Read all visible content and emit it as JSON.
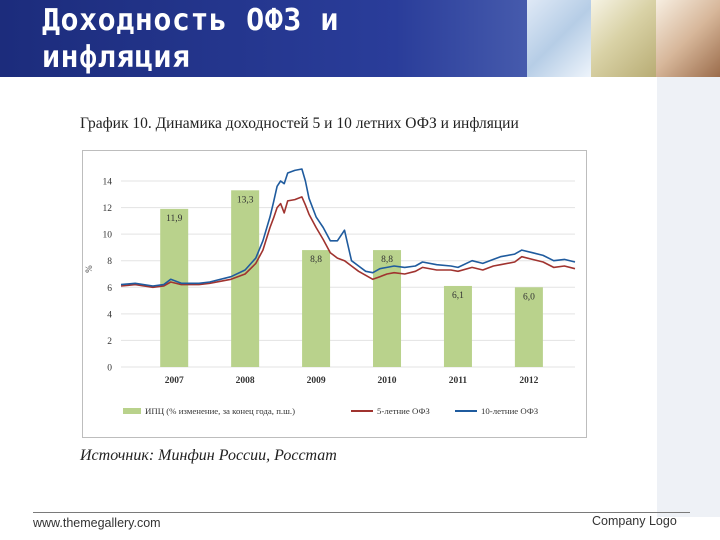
{
  "header": {
    "title": "Доходность ОФЗ и\nинфляция"
  },
  "slide": {
    "chart_title": "График 10. Динамика доходностей 5 и 10 летних ОФЗ и инфляции",
    "source": "Источник: Минфин России, Росстат"
  },
  "footer": {
    "url": "www.themegallery.com",
    "logo": "Company Logo"
  },
  "colors": {
    "header": "#23358a",
    "bars": "#b9d28c",
    "series_5y": "#a0332f",
    "series_10y": "#1f5b9e"
  },
  "chart_data": {
    "type": "bar",
    "title": "",
    "xlabel": "",
    "ylabel": "%",
    "ylim": [
      0,
      14
    ],
    "yticks": [
      0,
      2,
      4,
      6,
      8,
      10,
      12,
      14
    ],
    "categories": [
      "2007",
      "2008",
      "2009",
      "2010",
      "2011",
      "2012"
    ],
    "bars": {
      "name": "ИПЦ (% изменение, за конец года, п.ш.)",
      "values": [
        11.9,
        13.3,
        8.8,
        8.8,
        6.1,
        6.0
      ],
      "labels": [
        "11,9",
        "13,3",
        "8,8",
        "8,8",
        "6,1",
        "6,0"
      ]
    },
    "x_range": [
      2006.75,
      2013.15
    ],
    "series": [
      {
        "name": "5-летние ОФЗ",
        "type": "line",
        "points": [
          [
            2006.75,
            6.1
          ],
          [
            2006.95,
            6.2
          ],
          [
            2007.2,
            6.0
          ],
          [
            2007.35,
            6.1
          ],
          [
            2007.45,
            6.4
          ],
          [
            2007.6,
            6.2
          ],
          [
            2007.85,
            6.2
          ],
          [
            2008.0,
            6.3
          ],
          [
            2008.3,
            6.6
          ],
          [
            2008.5,
            7.0
          ],
          [
            2008.65,
            7.8
          ],
          [
            2008.75,
            8.8
          ],
          [
            2008.85,
            10.5
          ],
          [
            2008.9,
            11.2
          ],
          [
            2008.95,
            12.0
          ],
          [
            2009.0,
            12.3
          ],
          [
            2009.05,
            11.6
          ],
          [
            2009.1,
            12.5
          ],
          [
            2009.2,
            12.6
          ],
          [
            2009.3,
            12.8
          ],
          [
            2009.35,
            12.2
          ],
          [
            2009.4,
            11.5
          ],
          [
            2009.5,
            10.5
          ],
          [
            2009.6,
            9.6
          ],
          [
            2009.7,
            8.6
          ],
          [
            2009.8,
            8.2
          ],
          [
            2009.9,
            8.0
          ],
          [
            2010.0,
            7.6
          ],
          [
            2010.1,
            7.2
          ],
          [
            2010.2,
            6.9
          ],
          [
            2010.3,
            6.6
          ],
          [
            2010.4,
            6.8
          ],
          [
            2010.5,
            7.0
          ],
          [
            2010.6,
            7.1
          ],
          [
            2010.75,
            7.0
          ],
          [
            2010.9,
            7.2
          ],
          [
            2011.0,
            7.5
          ],
          [
            2011.2,
            7.3
          ],
          [
            2011.4,
            7.3
          ],
          [
            2011.5,
            7.2
          ],
          [
            2011.7,
            7.5
          ],
          [
            2011.85,
            7.3
          ],
          [
            2012.0,
            7.6
          ],
          [
            2012.1,
            7.7
          ],
          [
            2012.3,
            7.9
          ],
          [
            2012.4,
            8.3
          ],
          [
            2012.55,
            8.1
          ],
          [
            2012.7,
            7.9
          ],
          [
            2012.85,
            7.5
          ],
          [
            2013.0,
            7.6
          ],
          [
            2013.15,
            7.4
          ]
        ]
      },
      {
        "name": "10-летние ОФЗ",
        "type": "line",
        "points": [
          [
            2006.75,
            6.2
          ],
          [
            2006.95,
            6.3
          ],
          [
            2007.2,
            6.1
          ],
          [
            2007.35,
            6.2
          ],
          [
            2007.45,
            6.6
          ],
          [
            2007.6,
            6.3
          ],
          [
            2007.85,
            6.3
          ],
          [
            2008.0,
            6.4
          ],
          [
            2008.3,
            6.8
          ],
          [
            2008.5,
            7.3
          ],
          [
            2008.65,
            8.2
          ],
          [
            2008.75,
            9.5
          ],
          [
            2008.85,
            11.3
          ],
          [
            2008.9,
            12.4
          ],
          [
            2008.95,
            13.6
          ],
          [
            2009.0,
            14.0
          ],
          [
            2009.05,
            13.8
          ],
          [
            2009.1,
            14.6
          ],
          [
            2009.2,
            14.8
          ],
          [
            2009.3,
            14.9
          ],
          [
            2009.35,
            14.0
          ],
          [
            2009.4,
            12.7
          ],
          [
            2009.5,
            11.3
          ],
          [
            2009.6,
            10.5
          ],
          [
            2009.7,
            9.5
          ],
          [
            2009.8,
            9.5
          ],
          [
            2009.9,
            10.3
          ],
          [
            2010.0,
            8.0
          ],
          [
            2010.1,
            7.6
          ],
          [
            2010.2,
            7.2
          ],
          [
            2010.3,
            7.1
          ],
          [
            2010.4,
            7.4
          ],
          [
            2010.5,
            7.5
          ],
          [
            2010.6,
            7.6
          ],
          [
            2010.75,
            7.5
          ],
          [
            2010.9,
            7.6
          ],
          [
            2011.0,
            7.9
          ],
          [
            2011.2,
            7.7
          ],
          [
            2011.4,
            7.6
          ],
          [
            2011.5,
            7.5
          ],
          [
            2011.7,
            8.0
          ],
          [
            2011.85,
            7.8
          ],
          [
            2012.0,
            8.1
          ],
          [
            2012.1,
            8.3
          ],
          [
            2012.3,
            8.5
          ],
          [
            2012.4,
            8.8
          ],
          [
            2012.55,
            8.6
          ],
          [
            2012.7,
            8.4
          ],
          [
            2012.85,
            8.0
          ],
          [
            2013.0,
            8.1
          ],
          [
            2013.15,
            7.9
          ]
        ]
      }
    ],
    "grid": true,
    "legend_position": "bottom"
  }
}
